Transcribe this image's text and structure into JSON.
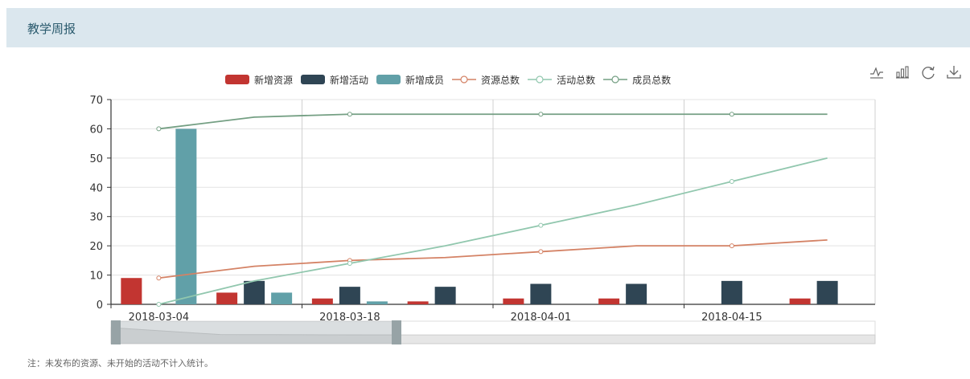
{
  "header": {
    "title": "教学周报"
  },
  "footnote": "注：未发布的资源、未开始的活动不计入统计。",
  "colors": {
    "header_bg": "#dbe7ee",
    "new_resources": "#c23531",
    "new_activities": "#2f4554",
    "new_members": "#61a0a8",
    "total_resources": "#d48265",
    "total_activities": "#91c7ae",
    "total_members": "#749f83"
  },
  "toolbox": [
    {
      "name": "line-chart-icon"
    },
    {
      "name": "bar-chart-icon"
    },
    {
      "name": "refresh-icon"
    },
    {
      "name": "download-icon"
    }
  ],
  "chart_data": {
    "type": "bar",
    "x_labels": [
      "2018-03-04",
      "2018-03-18",
      "2018-04-01",
      "2018-04-15"
    ],
    "ylim": [
      0,
      70
    ],
    "y_ticks": [
      0,
      10,
      20,
      30,
      40,
      50,
      60,
      70
    ],
    "grid": true,
    "legend_position": "top",
    "series": [
      {
        "name": "新增资源",
        "type": "bar",
        "values": [
          9,
          4,
          2,
          1,
          2,
          2,
          0,
          2
        ]
      },
      {
        "name": "新增活动",
        "type": "bar",
        "values": [
          0,
          8,
          6,
          6,
          7,
          7,
          8,
          8
        ]
      },
      {
        "name": "新增成员",
        "type": "bar",
        "values": [
          60,
          4,
          1,
          0,
          0,
          0,
          0,
          0
        ]
      },
      {
        "name": "资源总数",
        "type": "line",
        "values": [
          9,
          13,
          15,
          16,
          18,
          20,
          20,
          22
        ]
      },
      {
        "name": "活动总数",
        "type": "line",
        "values": [
          0,
          8,
          14,
          20,
          27,
          34,
          42,
          50
        ]
      },
      {
        "name": "成员总数",
        "type": "line",
        "values": [
          60,
          64,
          65,
          65,
          65,
          65,
          65,
          65
        ]
      }
    ],
    "data_zoom": {
      "start_fraction": 0,
      "end_fraction": 0.38
    }
  }
}
